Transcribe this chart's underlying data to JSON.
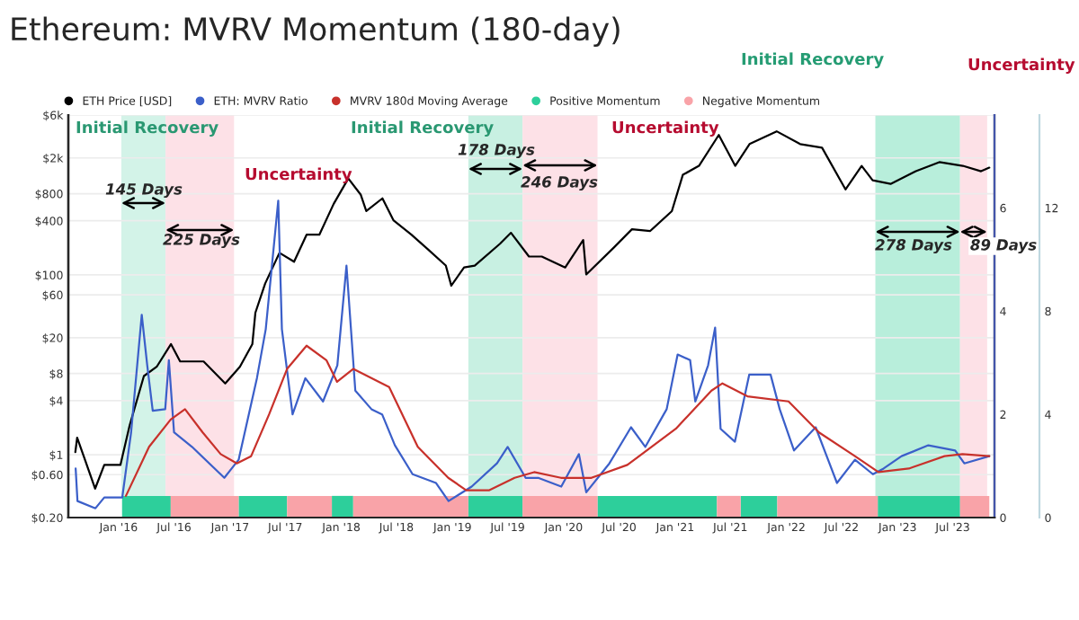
{
  "chart_data": {
    "type": "line",
    "title": "Ethereum: MVRV Momentum (180-day)",
    "xlim": [
      "2015-07-20",
      "2023-11-15"
    ],
    "xticks": [
      {
        "value": "2016-01-01",
        "label": "Jan '16"
      },
      {
        "value": "2016-07-01",
        "label": "Jul '16"
      },
      {
        "value": "2017-01-01",
        "label": "Jan '17"
      },
      {
        "value": "2017-07-01",
        "label": "Jul '17"
      },
      {
        "value": "2018-01-01",
        "label": "Jan '18"
      },
      {
        "value": "2018-07-01",
        "label": "Jul '18"
      },
      {
        "value": "2019-01-01",
        "label": "Jan '19"
      },
      {
        "value": "2019-07-01",
        "label": "Jul '19"
      },
      {
        "value": "2020-01-01",
        "label": "Jan '20"
      },
      {
        "value": "2020-07-01",
        "label": "Jul '20"
      },
      {
        "value": "2021-01-01",
        "label": "Jan '21"
      },
      {
        "value": "2021-07-01",
        "label": "Jul '21"
      },
      {
        "value": "2022-01-01",
        "label": "Jan '22"
      },
      {
        "value": "2022-07-01",
        "label": "Jul '22"
      },
      {
        "value": "2023-01-01",
        "label": "Jan '23"
      },
      {
        "value": "2023-07-01",
        "label": "Jul '23"
      }
    ],
    "log": true,
    "ylim": [
      0.2,
      6000
    ],
    "yticks": [
      {
        "value": 0.2,
        "label": "$0.20"
      },
      {
        "value": 0.6,
        "label": "$0.60"
      },
      {
        "value": 1,
        "label": "$1"
      },
      {
        "value": 4,
        "label": "$4"
      },
      {
        "value": 8,
        "label": "$8"
      },
      {
        "value": 20,
        "label": "$20"
      },
      {
        "value": 60,
        "label": "$60"
      },
      {
        "value": 100,
        "label": "$100"
      },
      {
        "value": 400,
        "label": "$400"
      },
      {
        "value": 800,
        "label": "$800"
      },
      {
        "value": 2000,
        "label": "$2k"
      },
      {
        "value": 6000,
        "label": "$6k"
      }
    ],
    "y2lim": [
      0,
      7.8
    ],
    "y2ticks": [
      0,
      2,
      4,
      6
    ],
    "y3lim": [
      0,
      15.6
    ],
    "y3ticks": [
      0,
      4,
      8,
      12
    ],
    "grid": "y",
    "legend": "top",
    "series": [
      {
        "name": "ETH Price [USD]",
        "color": "#000000",
        "x": [
          "2015-08-12",
          "2015-08-18",
          "2015-10-16",
          "2015-11-15",
          "2016-01-07",
          "2016-02-06",
          "2016-03-24",
          "2016-05-05",
          "2016-06-21",
          "2016-07-21",
          "2016-10-06",
          "2016-12-16",
          "2017-02-02",
          "2017-03-15",
          "2017-03-25",
          "2017-04-26",
          "2017-06-12",
          "2017-07-30",
          "2017-09-09",
          "2017-10-21",
          "2017-12-07",
          "2018-01-24",
          "2018-03-06",
          "2018-03-24",
          "2018-05-16",
          "2018-06-21",
          "2018-08-19",
          "2018-10-12",
          "2018-12-10",
          "2018-12-28",
          "2019-02-08",
          "2019-03-15",
          "2019-06-06",
          "2019-07-12",
          "2019-09-09",
          "2019-10-21",
          "2020-01-06",
          "2020-03-05",
          "2020-03-15",
          "2020-06-14",
          "2020-08-12",
          "2020-10-11",
          "2020-12-21",
          "2021-01-26",
          "2021-03-20",
          "2021-05-24",
          "2021-07-17",
          "2021-09-02",
          "2021-11-30",
          "2022-02-15",
          "2022-04-28",
          "2022-07-14",
          "2022-09-05",
          "2022-10-11",
          "2022-12-09",
          "2023-03-02",
          "2023-05-18",
          "2023-08-03",
          "2023-10-02",
          "2023-10-29"
        ],
        "values": [
          1.07,
          1.55,
          0.42,
          0.77,
          0.77,
          2.1,
          7.5,
          9.5,
          17,
          10.9,
          10.9,
          6.2,
          9.5,
          17,
          38,
          80,
          176,
          140,
          280,
          280,
          617,
          1180,
          778,
          512,
          710,
          406,
          280,
          193,
          127,
          76,
          121,
          127,
          222,
          294,
          160,
          160,
          121,
          244,
          101,
          202,
          322,
          308,
          512,
          1297,
          1633,
          3597,
          1633,
          2851,
          3953,
          2851,
          2600,
          893,
          1633,
          1127,
          1028,
          1422,
          1795,
          1633,
          1422,
          1560
        ]
      },
      {
        "name": "ETH: MVRV Ratio",
        "axis": "y2",
        "color": "#3b5fc9",
        "x": [
          "2015-08-13",
          "2015-08-19",
          "2015-10-17",
          "2015-11-15",
          "2016-01-13",
          "2016-02-11",
          "2016-03-17",
          "2016-04-04",
          "2016-04-22",
          "2016-06-02",
          "2016-06-14",
          "2016-07-01",
          "2016-08-29",
          "2016-12-13",
          "2017-01-29",
          "2017-03-30",
          "2017-04-28",
          "2017-06-08",
          "2017-06-20",
          "2017-07-25",
          "2017-09-05",
          "2017-11-02",
          "2017-12-19",
          "2018-01-18",
          "2018-02-16",
          "2018-04-10",
          "2018-05-15",
          "2018-06-26",
          "2018-08-23",
          "2018-11-08",
          "2018-12-19",
          "2019-03-05",
          "2019-05-27",
          "2019-07-01",
          "2019-08-29",
          "2019-10-09",
          "2019-12-24",
          "2020-02-20",
          "2020-03-15",
          "2020-05-30",
          "2020-08-09",
          "2020-09-25",
          "2020-12-04",
          "2021-01-09",
          "2021-02-19",
          "2021-03-08",
          "2021-04-19",
          "2021-05-12",
          "2021-05-30",
          "2021-07-16",
          "2021-09-01",
          "2021-11-10",
          "2021-12-10",
          "2022-01-26",
          "2022-04-07",
          "2022-06-16",
          "2022-08-14",
          "2022-10-12",
          "2022-11-16",
          "2023-01-14",
          "2023-04-12",
          "2023-07-09",
          "2023-08-08",
          "2023-10-29"
        ],
        "values": [
          0.95,
          0.32,
          0.18,
          0.39,
          0.39,
          1.65,
          3.93,
          2.95,
          2.07,
          2.1,
          3.05,
          1.65,
          1.37,
          0.77,
          1.12,
          2.7,
          3.65,
          6.14,
          3.65,
          2.0,
          2.7,
          2.25,
          2.95,
          4.88,
          2.46,
          2.1,
          2.0,
          1.4,
          0.84,
          0.67,
          0.32,
          0.6,
          1.05,
          1.37,
          0.77,
          0.77,
          0.6,
          1.23,
          0.49,
          1.05,
          1.75,
          1.37,
          2.1,
          3.16,
          3.05,
          2.25,
          2.95,
          3.68,
          1.72,
          1.47,
          2.77,
          2.77,
          2.1,
          1.3,
          1.75,
          0.67,
          1.12,
          0.84,
          0.95,
          1.19,
          1.4,
          1.3,
          1.05,
          1.19
        ]
      },
      {
        "name": "MVRV 180d Moving Average",
        "axis": "y2",
        "color": "#c8312b",
        "x": [
          "2016-01-25",
          "2016-04-10",
          "2016-06-20",
          "2016-08-06",
          "2016-10-03",
          "2016-12-01",
          "2017-01-23",
          "2017-03-11",
          "2017-05-09",
          "2017-07-07",
          "2017-09-09",
          "2017-11-13",
          "2017-12-18",
          "2018-02-09",
          "2018-06-07",
          "2018-09-09",
          "2018-12-18",
          "2019-02-15",
          "2019-05-02",
          "2019-07-24",
          "2019-09-26",
          "2019-12-23",
          "2020-04-01",
          "2020-07-28",
          "2021-01-03",
          "2021-04-30",
          "2021-06-05",
          "2021-08-26",
          "2022-01-08",
          "2022-04-18",
          "2022-08-14",
          "2022-10-30",
          "2023-02-07",
          "2023-06-04",
          "2023-08-02",
          "2023-10-29"
        ],
        "values": [
          0.42,
          1.37,
          1.9,
          2.1,
          1.65,
          1.23,
          1.05,
          1.19,
          2.0,
          2.88,
          3.33,
          3.05,
          2.63,
          2.88,
          2.53,
          1.37,
          0.77,
          0.53,
          0.53,
          0.77,
          0.88,
          0.77,
          0.77,
          1.02,
          1.72,
          2.46,
          2.6,
          2.35,
          2.25,
          1.65,
          1.19,
          0.88,
          0.95,
          1.19,
          1.23,
          1.19
        ]
      },
      {
        "name": "Positive Momentum",
        "type": "histogram",
        "axis": "y3",
        "color": "#2dcf9b",
        "bins": [
          "2016-01-13",
          "2016-06-20",
          "2017-01-29",
          "2017-07-07",
          "2017-12-01",
          "2018-02-09",
          "2019-02-22",
          "2019-08-19",
          "2020-04-21",
          "2021-05-18",
          "2021-08-04",
          "2021-12-02",
          "2022-10-28",
          "2023-07-25"
        ],
        "values": [
          0.84,
          null,
          0.84,
          null,
          0.84,
          null,
          0.84,
          null,
          0.84,
          null,
          0.84,
          null,
          0.84
        ]
      },
      {
        "name": "Negative Momentum",
        "type": "histogram",
        "axis": "y3",
        "color": "#f9a3a8",
        "bins": [
          "2016-06-20",
          "2017-01-29",
          "2017-07-07",
          "2017-12-01",
          "2018-02-09",
          "2019-02-22",
          "2019-08-19",
          "2020-04-21",
          "2021-05-18",
          "2021-08-04",
          "2021-12-02",
          "2022-10-28",
          "2023-07-25",
          "2023-10-29"
        ],
        "values": [
          0.84,
          null,
          0.84,
          null,
          0.84,
          null,
          0.84,
          null,
          0.84,
          null,
          0.84,
          null,
          0.84
        ]
      }
    ],
    "bands": [
      {
        "axis": "x",
        "from": "2016-01-10",
        "to": "2016-06-03",
        "label": "Initial Recovery",
        "color": "#d3f3e8"
      },
      {
        "axis": "x",
        "from": "2016-06-03",
        "to": "2017-01-14",
        "label": "Uncertainty",
        "color": "#fde1e7"
      },
      {
        "axis": "x",
        "from": "2019-02-22",
        "to": "2019-08-19",
        "label": "Initial Recovery",
        "color": "#c8f0e2"
      },
      {
        "axis": "x",
        "from": "2019-08-19",
        "to": "2020-04-21",
        "label": "Uncertainty",
        "color": "#fde1e7"
      },
      {
        "axis": "x",
        "from": "2022-10-20",
        "to": "2023-07-25",
        "label": "Initial Recovery",
        "color": "#b8eedb"
      },
      {
        "axis": "x",
        "from": "2023-07-25",
        "to": "2023-10-22",
        "label": "Uncertainty",
        "color": "#fde1e7"
      }
    ],
    "annotations": [
      "145 Days",
      "225 Days",
      "178 Days",
      "246 Days",
      "278 Days",
      "89 Days"
    ]
  }
}
